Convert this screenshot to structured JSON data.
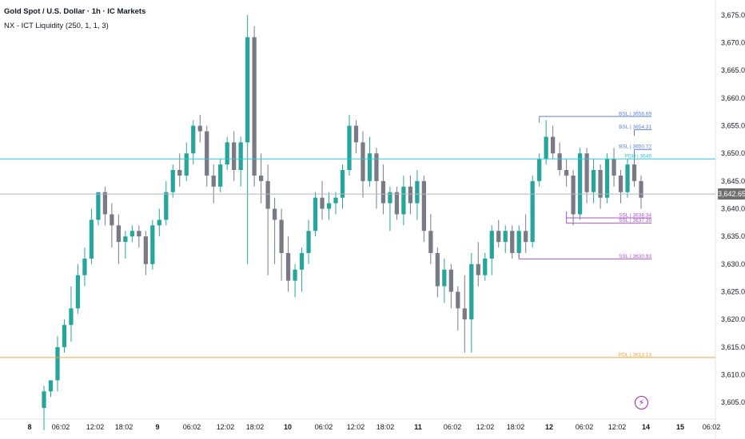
{
  "header": {
    "title": "Gold Spot / U.S. Dollar · 1h · IC Markets",
    "indicator": "NX - ICT Liquidity (250, 1, 1, 3)"
  },
  "price_axis": {
    "labels": [
      "3,675.00",
      "3,670.00",
      "3,665.00",
      "3,660.00",
      "3,655.00",
      "3,650.00",
      "3,645.00",
      "3,640.00",
      "3,635.00",
      "3,630.00",
      "3,625.00",
      "3,620.00",
      "3,615.00",
      "3,610.00",
      "3,605.00"
    ],
    "current_price": "3,642.65"
  },
  "colors": {
    "up": "#26a69a",
    "down": "#787b86",
    "bsl": "#5b7fd6",
    "ssl": "#a855c8",
    "pdh": "#2ec4d6",
    "pdl": "#f0a03c",
    "current": "#b2b5be"
  },
  "flash_icon": "lightning-icon",
  "chart_data": {
    "type": "candlestick",
    "title": "Gold Spot / U.S. Dollar · 1h · IC Markets",
    "ylim": [
      3602,
      3677
    ],
    "y_ticks": [
      3605,
      3610,
      3615,
      3620,
      3625,
      3630,
      3635,
      3640,
      3645,
      3650,
      3655,
      3660,
      3665,
      3670,
      3675
    ],
    "x_tick_labels": [
      "8",
      "06:02",
      "12:02",
      "18:02",
      "9",
      "06:02",
      "12:02",
      "18:02",
      "10",
      "06:02",
      "12:02",
      "18:02",
      "11",
      "06:02",
      "12:02",
      "18:02",
      "12",
      "06:02",
      "12:02",
      "14",
      "15",
      "06:02"
    ],
    "candles": [
      [
        3604,
        3608,
        3600,
        3607
      ],
      [
        3607,
        3609,
        3606,
        3609
      ],
      [
        3609,
        3617,
        3607,
        3615
      ],
      [
        3615,
        3620,
        3614,
        3619
      ],
      [
        3619,
        3626,
        3616,
        3622
      ],
      [
        3622,
        3630,
        3621,
        3628
      ],
      [
        3628,
        3633,
        3626,
        3631
      ],
      [
        3631,
        3640,
        3630,
        3638
      ],
      [
        3638,
        3643,
        3637,
        3643
      ],
      [
        3643,
        3644,
        3637,
        3639
      ],
      [
        3639,
        3641,
        3633,
        3637
      ],
      [
        3637,
        3639,
        3630,
        3634
      ],
      [
        3634,
        3636,
        3631,
        3635
      ],
      [
        3635,
        3637,
        3634,
        3636
      ],
      [
        3636,
        3637,
        3633,
        3635
      ],
      [
        3635,
        3636,
        3628,
        3630
      ],
      [
        3630,
        3638,
        3629,
        3637
      ],
      [
        3637,
        3640,
        3635,
        3638
      ],
      [
        3638,
        3645,
        3637,
        3643
      ],
      [
        3643,
        3648,
        3642,
        3647
      ],
      [
        3647,
        3650,
        3644,
        3646
      ],
      [
        3646,
        3652,
        3645,
        3650
      ],
      [
        3650,
        3656,
        3648,
        3655
      ],
      [
        3655,
        3657,
        3652,
        3654
      ],
      [
        3654,
        3655,
        3644,
        3646
      ],
      [
        3646,
        3648,
        3641,
        3644
      ],
      [
        3644,
        3649,
        3643,
        3648
      ],
      [
        3648,
        3653,
        3647,
        3652
      ],
      [
        3652,
        3654,
        3645,
        3647
      ],
      [
        3647,
        3653,
        3644,
        3652
      ],
      [
        3652,
        3675,
        3630,
        3671
      ],
      [
        3671,
        3673,
        3644,
        3646
      ],
      [
        3646,
        3650,
        3641,
        3645
      ],
      [
        3645,
        3648,
        3628,
        3640
      ],
      [
        3640,
        3642,
        3630,
        3638
      ],
      [
        3638,
        3640,
        3627,
        3632
      ],
      [
        3632,
        3635,
        3625,
        3627
      ],
      [
        3627,
        3630,
        3624,
        3629
      ],
      [
        3629,
        3633,
        3625,
        3632
      ],
      [
        3632,
        3638,
        3630,
        3636
      ],
      [
        3636,
        3643,
        3635,
        3642
      ],
      [
        3642,
        3645,
        3638,
        3640
      ],
      [
        3640,
        3643,
        3638,
        3641
      ],
      [
        3641,
        3643,
        3639,
        3642
      ],
      [
        3642,
        3648,
        3640,
        3647
      ],
      [
        3647,
        3657,
        3646,
        3655
      ],
      [
        3655,
        3656,
        3650,
        3652
      ],
      [
        3652,
        3654,
        3642,
        3645
      ],
      [
        3645,
        3653,
        3644,
        3650
      ],
      [
        3650,
        3651,
        3640,
        3645
      ],
      [
        3645,
        3648,
        3639,
        3641
      ],
      [
        3641,
        3644,
        3636,
        3643
      ],
      [
        3643,
        3644,
        3638,
        3639
      ],
      [
        3639,
        3646,
        3637,
        3644
      ],
      [
        3644,
        3646,
        3639,
        3641
      ],
      [
        3641,
        3647,
        3638,
        3645
      ],
      [
        3645,
        3646,
        3634,
        3636
      ],
      [
        3636,
        3639,
        3630,
        3632
      ],
      [
        3632,
        3633,
        3624,
        3626
      ],
      [
        3626,
        3631,
        3623,
        3629
      ],
      [
        3629,
        3630,
        3622,
        3625
      ],
      [
        3625,
        3626,
        3618,
        3622
      ],
      [
        3622,
        3628,
        3614,
        3620
      ],
      [
        3620,
        3632,
        3614,
        3630
      ],
      [
        3630,
        3634,
        3626,
        3628
      ],
      [
        3628,
        3632,
        3627,
        3631
      ],
      [
        3631,
        3637,
        3628,
        3636
      ],
      [
        3636,
        3638,
        3633,
        3634
      ],
      [
        3634,
        3637,
        3632,
        3636
      ],
      [
        3636,
        3637,
        3631,
        3632
      ],
      [
        3632,
        3637,
        3631,
        3636
      ],
      [
        3636,
        3639,
        3632,
        3634
      ],
      [
        3634,
        3646,
        3633,
        3645
      ],
      [
        3645,
        3650,
        3644,
        3649
      ],
      [
        3649,
        3656,
        3648,
        3653
      ],
      [
        3653,
        3655,
        3649,
        3650
      ],
      [
        3650,
        3652,
        3646,
        3647
      ],
      [
        3647,
        3649,
        3644,
        3646
      ],
      [
        3646,
        3647,
        3637,
        3639
      ],
      [
        3639,
        3651,
        3638,
        3650
      ],
      [
        3650,
        3651,
        3641,
        3643
      ],
      [
        3643,
        3649,
        3641,
        3647
      ],
      [
        3647,
        3648,
        3640,
        3642
      ],
      [
        3642,
        3650,
        3641,
        3649
      ],
      [
        3649,
        3651,
        3644,
        3646
      ],
      [
        3646,
        3647,
        3641,
        3643
      ],
      [
        3643,
        3649,
        3642,
        3648
      ],
      [
        3648,
        3650,
        3644,
        3645
      ],
      [
        3645,
        3646,
        3640,
        3642
      ]
    ],
    "levels": [
      {
        "label": "BSL | 3656.69",
        "price": 3656.69,
        "kind": "bsl"
      },
      {
        "label": "BSL | 3654.31",
        "price": 3654.31,
        "kind": "bsl"
      },
      {
        "label": "BSL | 3650.72",
        "price": 3650.72,
        "kind": "bsl"
      },
      {
        "label": "PDH | 3649",
        "price": 3649,
        "kind": "pdh"
      },
      {
        "label": "SSL | 3638.34",
        "price": 3638.34,
        "kind": "ssl"
      },
      {
        "label": "SSL | 3637.39",
        "price": 3637.39,
        "kind": "ssl"
      },
      {
        "label": "SSL | 3630.93",
        "price": 3630.93,
        "kind": "ssl"
      },
      {
        "label": "PDL | 3613.13",
        "price": 3613.13,
        "kind": "pdl"
      }
    ],
    "current_price": 3642.65
  }
}
